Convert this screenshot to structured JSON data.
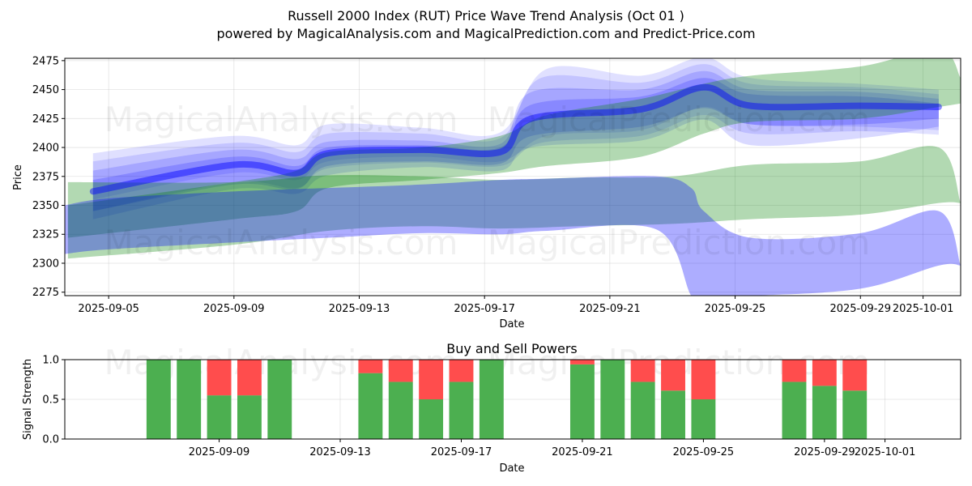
{
  "chart_data": [
    {
      "type": "area",
      "title_line1": "Russell 2000 Index (RUT) Price Wave Trend Analysis (Oct 01 )",
      "title_line2": "powered by MagicalAnalysis.com and MagicalPrediction.com and Predict-Price.com",
      "xlabel": "Date",
      "ylabel": "Price",
      "x_range": [
        "2025-09-03.6",
        "2025-10-02.2"
      ],
      "ylim": [
        2272,
        2477
      ],
      "yticks": [
        2275,
        2300,
        2325,
        2350,
        2375,
        2400,
        2425,
        2450,
        2475
      ],
      "xticks": [
        "2025-09-05",
        "2025-09-09",
        "2025-09-13",
        "2025-09-17",
        "2025-09-21",
        "2025-09-25",
        "2025-09-29",
        "2025-10-01"
      ],
      "grid": true,
      "colors": {
        "blue": "#0000ff",
        "green": "#008000",
        "overlap": "#4b6e99"
      },
      "watermarks": [
        "MagicalAnalysis.com",
        "MagicalPrediction.com"
      ],
      "series": [
        {
          "name": "blue-band-1",
          "color": "blue",
          "opacity": 0.12,
          "x": [
            4.5,
            9,
            11,
            12,
            15,
            17.5,
            19,
            22,
            24,
            25.5,
            29,
            31.5
          ],
          "upper": [
            2395,
            2410,
            2402,
            2420,
            2417,
            2413,
            2468,
            2462,
            2478,
            2460,
            2455,
            2450
          ],
          "lower": [
            2355,
            2378,
            2372,
            2388,
            2392,
            2388,
            2410,
            2415,
            2435,
            2420,
            2418,
            2415
          ]
        },
        {
          "name": "blue-band-2",
          "color": "blue",
          "opacity": 0.12,
          "x": [
            4.5,
            9,
            11,
            12,
            15,
            17.5,
            18.8,
            22,
            24,
            25.5,
            29,
            31.5
          ],
          "upper": [
            2388,
            2404,
            2396,
            2412,
            2412,
            2408,
            2460,
            2456,
            2472,
            2455,
            2452,
            2446
          ],
          "lower": [
            2345,
            2370,
            2365,
            2382,
            2387,
            2384,
            2404,
            2410,
            2428,
            2412,
            2414,
            2411
          ]
        },
        {
          "name": "blue-band-3",
          "color": "blue",
          "opacity": 0.15,
          "x": [
            4.5,
            9,
            11,
            12,
            15,
            17.5,
            18.5,
            22,
            24,
            25.5,
            29,
            31.5
          ],
          "upper": [
            2380,
            2398,
            2390,
            2405,
            2406,
            2403,
            2448,
            2450,
            2466,
            2450,
            2448,
            2442
          ],
          "lower": [
            2338,
            2364,
            2360,
            2376,
            2383,
            2380,
            2400,
            2406,
            2424,
            2402,
            2408,
            2418
          ]
        },
        {
          "name": "blue-band-4",
          "color": "blue",
          "opacity": 0.18,
          "x": [
            4.5,
            9,
            11,
            12,
            15,
            17.5,
            18.5,
            22,
            24,
            25.5,
            29,
            31.5
          ],
          "upper": [
            2372,
            2392,
            2384,
            2400,
            2402,
            2400,
            2437,
            2444,
            2460,
            2446,
            2444,
            2438
          ],
          "lower": [
            2345,
            2368,
            2364,
            2384,
            2388,
            2386,
            2410,
            2418,
            2434,
            2420,
            2420,
            2425
          ]
        },
        {
          "name": "green-band-upper",
          "color": "green",
          "opacity": 0.3,
          "x": [
            3.7,
            9,
            11,
            12,
            15,
            17.5,
            19,
            22,
            24,
            25.5,
            29,
            31.5,
            32.2
          ],
          "upper": [
            2350,
            2370,
            2380,
            2396,
            2400,
            2410,
            2428,
            2442,
            2455,
            2462,
            2470,
            2485,
            2460
          ],
          "lower": [
            2322,
            2338,
            2345,
            2365,
            2372,
            2378,
            2384,
            2392,
            2412,
            2422,
            2425,
            2435,
            2438
          ]
        },
        {
          "name": "green-band-lower",
          "color": "green",
          "opacity": 0.3,
          "x": [
            3.7,
            9,
            12,
            15,
            17.5,
            20,
            23,
            25.5,
            29,
            31.5,
            32.2
          ],
          "upper": [
            2370,
            2370,
            2376,
            2375,
            2372,
            2374,
            2375,
            2385,
            2388,
            2400,
            2352
          ],
          "lower": [
            2304,
            2316,
            2328,
            2332,
            2330,
            2332,
            2334,
            2338,
            2342,
            2352,
            2352
          ]
        },
        {
          "name": "blue-slab",
          "color": "blue",
          "opacity": 0.32,
          "x": [
            3.6,
            5,
            9,
            12,
            15,
            17.5,
            19,
            22.5,
            23.6,
            24,
            25.5,
            29,
            31.5,
            32.2
          ],
          "upper": [
            2350,
            2356,
            2362,
            2365,
            2368,
            2372,
            2373,
            2375,
            2365,
            2345,
            2322,
            2326,
            2345,
            2298
          ],
          "lower": [
            2308,
            2312,
            2318,
            2322,
            2326,
            2325,
            2328,
            2329,
            2272,
            2272,
            2272,
            2278,
            2298,
            2298
          ]
        },
        {
          "name": "blue-line",
          "color": "blue",
          "opacity": 0.45,
          "line_width": 8,
          "x": [
            4.5,
            9,
            11,
            12,
            15,
            17.5,
            18.5,
            22,
            24,
            25.5,
            29,
            31.5
          ],
          "y": [
            2362,
            2385,
            2378,
            2395,
            2398,
            2396,
            2425,
            2433,
            2452,
            2436,
            2436,
            2435
          ]
        }
      ]
    },
    {
      "type": "bar",
      "title": "Buy and Sell Powers",
      "xlabel": "Date",
      "ylabel": "Signal Strength",
      "ylim": [
        0,
        1
      ],
      "yticks": [
        "0.0",
        "0.5",
        "1.0"
      ],
      "xticks": [
        "2025-09-09",
        "2025-09-13",
        "2025-09-17",
        "2025-09-21",
        "2025-09-25",
        "2025-09-29",
        "2025-10-01"
      ],
      "grid": true,
      "colors": {
        "buy": "#4caf50",
        "sell": "#ff4d4d"
      },
      "dates": [
        "2025-09-07",
        "2025-09-08",
        "2025-09-09",
        "2025-09-10",
        "2025-09-11",
        "2025-09-14",
        "2025-09-15",
        "2025-09-16",
        "2025-09-17",
        "2025-09-18",
        "2025-09-21",
        "2025-09-22",
        "2025-09-23",
        "2025-09-24",
        "2025-09-25",
        "2025-09-28",
        "2025-09-29",
        "2025-09-30"
      ],
      "buy": [
        1.0,
        1.0,
        0.55,
        0.55,
        1.0,
        0.83,
        0.72,
        0.5,
        0.72,
        1.0,
        0.94,
        1.0,
        0.72,
        0.61,
        0.5,
        0.72,
        0.67,
        0.61
      ],
      "sell": [
        0.0,
        0.0,
        0.45,
        0.45,
        0.0,
        0.17,
        0.28,
        0.5,
        0.28,
        0.0,
        0.06,
        0.0,
        0.28,
        0.39,
        0.5,
        0.28,
        0.33,
        0.39
      ],
      "watermarks": [
        "MagicalAnalysis.com",
        "MagicalPrediction.com"
      ]
    }
  ]
}
